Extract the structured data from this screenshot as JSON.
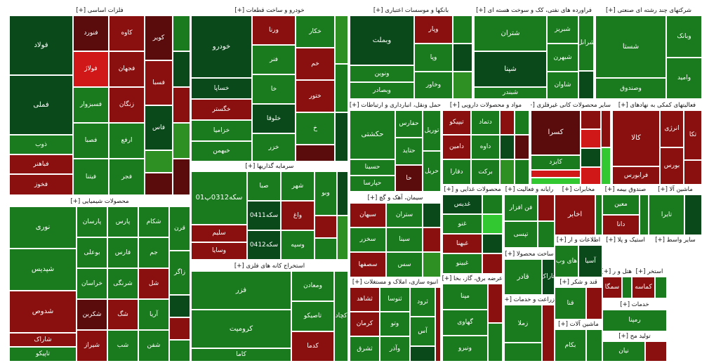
{
  "colors": {
    "dg": "#0a4a1a",
    "mg": "#197a1e",
    "lg": "#2e8f22",
    "bg": "#32c832",
    "dr": "#5a0b0b",
    "mr": "#8a1010",
    "br": "#d01818"
  },
  "sections": [
    {
      "title": "فلزات اساسی [+]",
      "cells": [
        {
          "t": "فولاد",
          "c": "dg",
          "sz": "big"
        },
        {
          "t": "فملی",
          "c": "dg",
          "sz": "big"
        },
        {
          "t": "ذوب",
          "c": "mg"
        },
        {
          "t": "فباهنر",
          "c": "mr"
        },
        {
          "t": "فخوز",
          "c": "mr"
        },
        {
          "t": "فنورد",
          "c": "dr"
        },
        {
          "t": "فولاژ",
          "c": "br"
        },
        {
          "t": "فسبزوار",
          "c": "mg"
        },
        {
          "t": "فصبا",
          "c": "mg"
        },
        {
          "t": "فیتنا",
          "c": "mg"
        },
        {
          "t": "کاوه",
          "c": "mr"
        },
        {
          "t": "فجهان",
          "c": "mr"
        },
        {
          "t": "زنگان",
          "c": "mr"
        },
        {
          "t": "ارفع",
          "c": "mg"
        },
        {
          "t": "فجر",
          "c": "mg"
        },
        {
          "t": "کویر",
          "c": "dr"
        },
        {
          "t": "فسبا",
          "c": "mr"
        },
        {
          "t": "فاس",
          "c": "dg"
        },
        {
          "t": "",
          "c": "lg"
        },
        {
          "t": "",
          "c": "dr"
        },
        {
          "t": "",
          "c": "mg"
        },
        {
          "t": "",
          "c": "dg"
        },
        {
          "t": "",
          "c": "mr"
        },
        {
          "t": "",
          "c": "lg"
        },
        {
          "t": "",
          "c": "dr"
        }
      ]
    },
    {
      "title": "خودرو و ساخت قطعات [+]",
      "cells": [
        {
          "t": "خودرو",
          "c": "dg",
          "sz": "big"
        },
        {
          "t": "خساپا",
          "c": "dg"
        },
        {
          "t": "خگستر",
          "c": "mr"
        },
        {
          "t": "خزامیا",
          "c": "mg"
        },
        {
          "t": "خبهمن",
          "c": "mg"
        },
        {
          "t": "ورنا",
          "c": "mr"
        },
        {
          "t": "فنر",
          "c": "mg"
        },
        {
          "t": "خا",
          "c": "mg"
        },
        {
          "t": "خلوقا",
          "c": "dg"
        },
        {
          "t": "خزر",
          "c": "mg"
        },
        {
          "t": "خکار",
          "c": "mg"
        },
        {
          "t": "خم",
          "c": "mr"
        },
        {
          "t": "ختور",
          "c": "mr"
        },
        {
          "t": "خ",
          "c": "mg"
        },
        {
          "t": "",
          "c": "dr"
        },
        {
          "t": "",
          "c": "lg"
        },
        {
          "t": "",
          "c": "mg"
        },
        {
          "t": "",
          "c": "dg"
        }
      ]
    },
    {
      "title": "بانکها و موسسات اعتباری [+]",
      "cells": [
        {
          "t": "وبملت",
          "c": "dg",
          "sz": "big"
        },
        {
          "t": "ونوین",
          "c": "mg"
        },
        {
          "t": "وبصادر",
          "c": "mg"
        },
        {
          "t": "وپار",
          "c": "mr"
        },
        {
          "t": "وپا",
          "c": "mg"
        },
        {
          "t": "وخاور",
          "c": "mg"
        },
        {
          "t": "",
          "c": "mg"
        },
        {
          "t": "",
          "c": "dg"
        },
        {
          "t": "",
          "c": "lg"
        }
      ]
    },
    {
      "title": "فراورده های نفتی، کک و سوخت هسته ای [+]",
      "cells": [
        {
          "t": "شتران",
          "c": "mg",
          "sz": "big"
        },
        {
          "t": "شپنا",
          "c": "dg",
          "sz": "big"
        },
        {
          "t": "شبندر",
          "c": "mg"
        },
        {
          "t": "شبریز",
          "c": "mg"
        },
        {
          "t": "شبهرن",
          "c": "mg"
        },
        {
          "t": "شاوان",
          "c": "mg"
        },
        {
          "t": "شرانل",
          "c": "mg"
        },
        {
          "t": "",
          "c": "dg"
        }
      ]
    },
    {
      "title": "شرکتهای چند رشته ای صنعتی [+]",
      "cells": [
        {
          "t": "شستا",
          "c": "mg",
          "sz": "big"
        },
        {
          "t": "وصندوق",
          "c": "mg"
        },
        {
          "t": "وبانک",
          "c": "mg"
        },
        {
          "t": "وامید",
          "c": "mg"
        }
      ]
    },
    {
      "title": "حمل ونقل، انبارداری و ارتباطات [+]",
      "cells": [
        {
          "t": "حکشتی",
          "c": "mg",
          "sz": "big"
        },
        {
          "t": "حسینا",
          "c": "mg"
        },
        {
          "t": "حپارسا",
          "c": "mg"
        },
        {
          "t": "حفارس",
          "c": "mg"
        },
        {
          "t": "حتاید",
          "c": "mg"
        },
        {
          "t": "حا",
          "c": "dr"
        },
        {
          "t": "توریل",
          "c": "mg"
        },
        {
          "t": "حریل",
          "c": "mg"
        }
      ]
    },
    {
      "title": "مواد و محصولات دارویی [+]",
      "cells": [
        {
          "t": "تیپیکو",
          "c": "mr"
        },
        {
          "t": "دامین",
          "c": "mr"
        },
        {
          "t": "دقارا",
          "c": "mg"
        },
        {
          "t": "دتماد",
          "c": "mg"
        },
        {
          "t": "داوه",
          "c": "mg"
        },
        {
          "t": "برکت",
          "c": "mg"
        },
        {
          "t": "",
          "c": "mr"
        },
        {
          "t": "",
          "c": "dg"
        },
        {
          "t": "",
          "c": "lg"
        },
        {
          "t": "",
          "c": "mg"
        },
        {
          "t": "",
          "c": "dr"
        },
        {
          "t": "",
          "c": "mg"
        }
      ]
    },
    {
      "title": "سایر محصولات کانی غیرفلزی [+]",
      "cells": [
        {
          "t": "کسرا",
          "c": "dr",
          "sz": "big"
        },
        {
          "t": "کایزد",
          "c": "mg"
        },
        {
          "t": "",
          "c": "br"
        },
        {
          "t": "",
          "c": "bg"
        },
        {
          "t": "",
          "c": "mr"
        },
        {
          "t": "",
          "c": "br"
        },
        {
          "t": "",
          "c": "dg"
        },
        {
          "t": "",
          "c": "br"
        },
        {
          "t": "",
          "c": "mr"
        },
        {
          "t": "",
          "c": "bg"
        }
      ]
    },
    {
      "title": "فعالیتهای کمکی به نهادهای [+]",
      "cells": [
        {
          "t": "کالا",
          "c": "mr",
          "sz": "big"
        },
        {
          "t": "فرابورس",
          "c": "mr"
        },
        {
          "t": "انرژی",
          "c": "mr"
        },
        {
          "t": "بورس",
          "c": "mr"
        },
        {
          "t": "تکا",
          "c": "mr"
        },
        {
          "t": "",
          "c": "mr"
        }
      ]
    },
    {
      "title": "سرمایه گذاریها [+]",
      "cells": [
        {
          "t": "سکه0312پ01",
          "c": "mg",
          "sz": "big"
        },
        {
          "t": "سلیم",
          "c": "mr"
        },
        {
          "t": "وسایا",
          "c": "mr"
        },
        {
          "t": "صبا",
          "c": "mg"
        },
        {
          "t": "سکه0411",
          "c": "dg"
        },
        {
          "t": "سکه0412",
          "c": "dg"
        },
        {
          "t": "شهر",
          "c": "mg"
        },
        {
          "t": "واغ",
          "c": "mr"
        },
        {
          "t": "وسپه",
          "c": "mg"
        },
        {
          "t": "وبو",
          "c": "mg"
        },
        {
          "t": "",
          "c": "mr"
        },
        {
          "t": "",
          "c": "mg"
        },
        {
          "t": "",
          "c": "dg"
        },
        {
          "t": "",
          "c": "lg"
        }
      ]
    },
    {
      "title": "سیمان، آهک و گچ [+]",
      "cells": [
        {
          "t": "سبهان",
          "c": "mr"
        },
        {
          "t": "سخزر",
          "c": "mg"
        },
        {
          "t": "سصفها",
          "c": "mr"
        },
        {
          "t": "ستران",
          "c": "mg"
        },
        {
          "t": "سینا",
          "c": "mg"
        },
        {
          "t": "سس",
          "c": "mg"
        },
        {
          "t": "",
          "c": "dg"
        },
        {
          "t": "",
          "c": "mr"
        },
        {
          "t": "",
          "c": "lg"
        }
      ]
    },
    {
      "title": "محصولات غذایی و [+]",
      "cells": [
        {
          "t": "غدیس",
          "c": "dg"
        },
        {
          "t": "غنو",
          "c": "mg"
        },
        {
          "t": "غبهنا",
          "c": "mr"
        },
        {
          "t": "غبینو",
          "c": "mg"
        },
        {
          "t": "",
          "c": "mg"
        },
        {
          "t": "",
          "c": "bg"
        },
        {
          "t": "",
          "c": "dg"
        },
        {
          "t": "",
          "c": "mr"
        }
      ]
    },
    {
      "title": "رایانه و فعالیت [+]",
      "cells": [
        {
          "t": "فن افزار",
          "c": "mg"
        },
        {
          "t": "تپسی",
          "c": "mg"
        },
        {
          "t": "",
          "c": "mr"
        },
        {
          "t": "",
          "c": "mg"
        }
      ]
    },
    {
      "title": "مخابرات [+]",
      "cells": [
        {
          "t": "اخابر",
          "c": "mr",
          "sz": "big"
        },
        {
          "t": "",
          "c": "mg"
        }
      ]
    },
    {
      "title": "صندوق بیمه [+]",
      "cells": [
        {
          "t": "معین",
          "c": "mg"
        },
        {
          "t": "دانا",
          "c": "mr"
        },
        {
          "t": "",
          "c": "mg"
        }
      ]
    },
    {
      "title": "ماشین آلا [+]",
      "cells": [
        {
          "t": "تایرا",
          "c": "mg"
        },
        {
          "t": "",
          "c": "dg"
        }
      ]
    },
    {
      "title": "اطلاعات و ار [+]",
      "cells": [
        {
          "t": "های وب",
          "c": "mg"
        },
        {
          "t": "آسیا",
          "c": "dg"
        }
      ]
    },
    {
      "title": "استیک و پلا [+]",
      "cells": [
        {
          "t": "",
          "c": "mg"
        },
        {
          "t": "",
          "c": "dg"
        }
      ]
    },
    {
      "title": "سایر واسط [+]",
      "cells": [
        {
          "t": "",
          "c": "mg"
        },
        {
          "t": "",
          "c": "dg"
        }
      ]
    },
    {
      "title": "استخراج کانه های فلزی [+]",
      "cells": [
        {
          "t": "فزر",
          "c": "mg",
          "sz": "big"
        },
        {
          "t": "کرومیت",
          "c": "mg",
          "sz": "big"
        },
        {
          "t": "کاما",
          "c": "mg"
        },
        {
          "t": "ومعادن",
          "c": "mg"
        },
        {
          "t": "تاصیکو",
          "c": "mg"
        },
        {
          "t": "کدما",
          "c": "mr"
        },
        {
          "t": "کچاد",
          "c": "mg"
        }
      ]
    },
    {
      "title": "انبوه سازی، املاک و مستغلات [+]",
      "cells": [
        {
          "t": "ثشاهد",
          "c": "mr"
        },
        {
          "t": "کرمان",
          "c": "mr"
        },
        {
          "t": "ثشرق",
          "c": "mg"
        },
        {
          "t": "ثنوسا",
          "c": "mg"
        },
        {
          "t": "وتو",
          "c": "mg"
        },
        {
          "t": "وآذر",
          "c": "mg"
        },
        {
          "t": "ثرود",
          "c": "mg"
        },
        {
          "t": "آس",
          "c": "mg"
        },
        {
          "t": "",
          "c": "dg"
        },
        {
          "t": "",
          "c": "mr"
        }
      ]
    },
    {
      "title": "عرضه برق، گاز، بخا [+]",
      "cells": [
        {
          "t": "مپنا",
          "c": "mg"
        },
        {
          "t": "گهاوی",
          "c": "mg"
        },
        {
          "t": "ونیرو",
          "c": "mg"
        },
        {
          "t": "",
          "c": "mr"
        },
        {
          "t": "",
          "c": "mg"
        }
      ]
    },
    {
      "title": "ساخت محصولا [+]",
      "cells": [
        {
          "t": "قادر",
          "c": "mg",
          "sz": "big"
        },
        {
          "t": "فاراک",
          "c": "dg"
        }
      ]
    },
    {
      "title": "قند و شکر [+]",
      "cells": [
        {
          "t": "قنا",
          "c": "mg"
        },
        {
          "t": "",
          "c": "mr"
        }
      ]
    },
    {
      "title": "زراعت و خدمات [+]",
      "cells": [
        {
          "t": "زملا",
          "c": "mg"
        },
        {
          "t": "",
          "c": "mg"
        },
        {
          "t": "",
          "c": "mr"
        }
      ]
    },
    {
      "title": "ماشین آلات [+]",
      "cells": [
        {
          "t": "بکام",
          "c": "mg"
        },
        {
          "t": "",
          "c": "mg"
        }
      ]
    },
    {
      "title": "هتل و ر [+]",
      "cells": [
        {
          "t": "سمگا",
          "c": "mr"
        },
        {
          "t": "",
          "c": "mg"
        }
      ]
    },
    {
      "title": "استخر [+]",
      "cells": [
        {
          "t": "کماسه",
          "c": "mr"
        },
        {
          "t": "",
          "c": "mg"
        }
      ]
    },
    {
      "title": "خدمات [+]",
      "cells": [
        {
          "t": "رمپنا",
          "c": "mg"
        }
      ]
    },
    {
      "title": "تولید مح [+]",
      "cells": [
        {
          "t": "نیان",
          "c": "mg"
        },
        {
          "t": "",
          "c": "mr"
        }
      ]
    },
    {
      "title": "محصولات شیمیایی [+]",
      "cells": [
        {
          "t": "نوری",
          "c": "mg",
          "sz": "big"
        },
        {
          "t": "شپدیس",
          "c": "mg",
          "sz": "big"
        },
        {
          "t": "شدوص",
          "c": "mr",
          "sz": "big"
        },
        {
          "t": "شاراک",
          "c": "mr"
        },
        {
          "t": "تاپیکو",
          "c": "mg"
        },
        {
          "t": "پارسان",
          "c": "mg"
        },
        {
          "t": "بوعلی",
          "c": "mg"
        },
        {
          "t": "خراسان",
          "c": "mg"
        },
        {
          "t": "شکربن",
          "c": "dr"
        },
        {
          "t": "شیراز",
          "c": "mr"
        },
        {
          "t": "پارس",
          "c": "mg"
        },
        {
          "t": "فارس",
          "c": "mg"
        },
        {
          "t": "شرنگی",
          "c": "mg"
        },
        {
          "t": "شگ",
          "c": "mr"
        },
        {
          "t": "شب",
          "c": "mg"
        },
        {
          "t": "شکام",
          "c": "mg"
        },
        {
          "t": "جم",
          "c": "mg"
        },
        {
          "t": "شل",
          "c": "mr"
        },
        {
          "t": "آریا",
          "c": "mg"
        },
        {
          "t": "شفن",
          "c": "mg"
        },
        {
          "t": "قرن",
          "c": "mg"
        },
        {
          "t": "زاگر",
          "c": "mg"
        },
        {
          "t": "",
          "c": "dg"
        },
        {
          "t": "",
          "c": "mr"
        },
        {
          "t": "",
          "c": "mg"
        }
      ]
    }
  ]
}
